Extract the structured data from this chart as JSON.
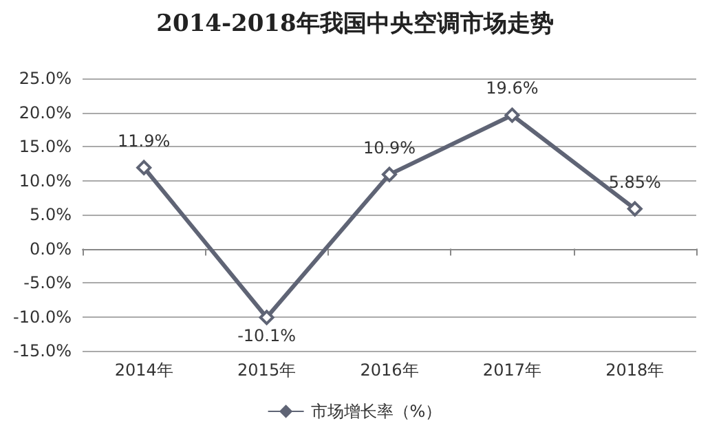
{
  "chart_data": {
    "type": "line",
    "title": "2014-2018年我国中央空调市场走势",
    "categories": [
      "2014年",
      "2015年",
      "2016年",
      "2017年",
      "2018年"
    ],
    "series": [
      {
        "name": "市场增长率（%）",
        "color": "#5f6475",
        "values": [
          11.9,
          -10.1,
          10.9,
          19.6,
          5.85
        ]
      }
    ],
    "ylim": [
      -15,
      25
    ],
    "yticks": [
      {
        "value": -15,
        "label": "-15.0%"
      },
      {
        "value": -10,
        "label": "-10.0%"
      },
      {
        "value": -5,
        "label": "-5.0%"
      },
      {
        "value": 0,
        "label": "0.0%"
      },
      {
        "value": 5,
        "label": "5.0%"
      },
      {
        "value": 10,
        "label": "10.0%"
      },
      {
        "value": 15,
        "label": "15.0%"
      },
      {
        "value": 20,
        "label": "20.0%"
      },
      {
        "value": 25,
        "label": "25.0%"
      }
    ],
    "value_labels": [
      "11.9%",
      "-10.1%",
      "10.9%",
      "19.6%",
      "5.85%"
    ],
    "grid": "y",
    "legend": "bottom",
    "marker": "diamond",
    "line_style": "solid"
  }
}
